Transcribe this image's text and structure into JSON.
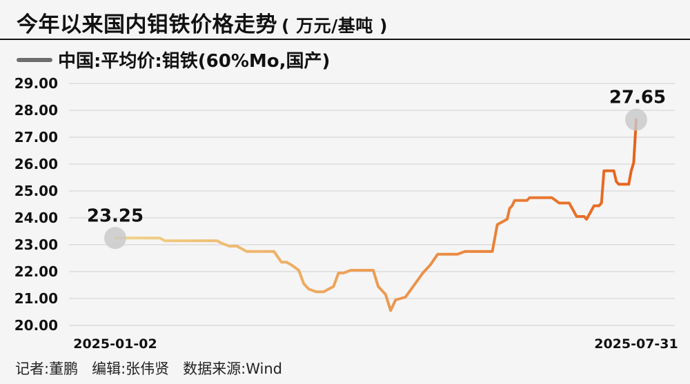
{
  "title": "今年以来国内钼铁价格走势",
  "unit": "( 万元/基吨 )",
  "legend": {
    "label": "中国:平均价:钼铁(60%Mo,国产)"
  },
  "footer": {
    "author": "记者:董鹏",
    "editor": "编辑:张伟贤",
    "source": "数据来源:Wind"
  },
  "colors": {
    "start": "#f1d48a",
    "end": "#e6631c",
    "grid": "#cfcfcf",
    "highlight": "#c8c8c8"
  },
  "chart_data": {
    "type": "line",
    "ylim": [
      20,
      29
    ],
    "yticks": [
      "29.00",
      "28.00",
      "27.00",
      "26.00",
      "25.00",
      "24.00",
      "23.00",
      "22.00",
      "21.00",
      "20.00"
    ],
    "x_range": [
      "2025-01-02",
      "2025-07-31"
    ],
    "xtick_labels": [
      "2025-01-02",
      "2025-07-31"
    ],
    "annotations": [
      {
        "label": "23.25",
        "at": "start"
      },
      {
        "label": "27.65",
        "at": "end"
      }
    ],
    "series": [
      {
        "points": [
          [
            "2025-01-02",
            23.25
          ],
          [
            "2025-01-07",
            23.25
          ],
          [
            "2025-01-10",
            23.25
          ],
          [
            "2025-01-15",
            23.25
          ],
          [
            "2025-01-20",
            23.25
          ],
          [
            "2025-01-22",
            23.15
          ],
          [
            "2025-01-27",
            23.15
          ],
          [
            "2025-02-05",
            23.15
          ],
          [
            "2025-02-10",
            23.15
          ],
          [
            "2025-02-12",
            23.15
          ],
          [
            "2025-02-14",
            23.05
          ],
          [
            "2025-02-17",
            22.95
          ],
          [
            "2025-02-20",
            22.95
          ],
          [
            "2025-02-24",
            22.75
          ],
          [
            "2025-03-03",
            22.75
          ],
          [
            "2025-03-07",
            22.75
          ],
          [
            "2025-03-10",
            22.35
          ],
          [
            "2025-03-12",
            22.35
          ],
          [
            "2025-03-14",
            22.25
          ],
          [
            "2025-03-17",
            22.05
          ],
          [
            "2025-03-19",
            21.55
          ],
          [
            "2025-03-21",
            21.35
          ],
          [
            "2025-03-24",
            21.25
          ],
          [
            "2025-03-27",
            21.25
          ],
          [
            "2025-03-31",
            21.45
          ],
          [
            "2025-04-02",
            21.95
          ],
          [
            "2025-04-04",
            21.95
          ],
          [
            "2025-04-07",
            22.05
          ],
          [
            "2025-04-14",
            22.05
          ],
          [
            "2025-04-16",
            22.05
          ],
          [
            "2025-04-18",
            21.45
          ],
          [
            "2025-04-21",
            21.15
          ],
          [
            "2025-04-23",
            20.55
          ],
          [
            "2025-04-25",
            20.95
          ],
          [
            "2025-04-29",
            21.05
          ],
          [
            "2025-05-06",
            21.95
          ],
          [
            "2025-05-09",
            22.25
          ],
          [
            "2025-05-12",
            22.65
          ],
          [
            "2025-05-16",
            22.65
          ],
          [
            "2025-05-20",
            22.65
          ],
          [
            "2025-05-23",
            22.75
          ],
          [
            "2025-05-30",
            22.75
          ],
          [
            "2025-06-03",
            22.75
          ],
          [
            "2025-06-05",
            23.75
          ],
          [
            "2025-06-09",
            23.95
          ],
          [
            "2025-06-10",
            24.35
          ],
          [
            "2025-06-11",
            24.45
          ],
          [
            "2025-06-12",
            24.65
          ],
          [
            "2025-06-17",
            24.65
          ],
          [
            "2025-06-18",
            24.75
          ],
          [
            "2025-06-23",
            24.75
          ],
          [
            "2025-06-27",
            24.75
          ],
          [
            "2025-06-30",
            24.55
          ],
          [
            "2025-07-04",
            24.55
          ],
          [
            "2025-07-07",
            24.05
          ],
          [
            "2025-07-10",
            24.05
          ],
          [
            "2025-07-11",
            23.95
          ],
          [
            "2025-07-14",
            24.45
          ],
          [
            "2025-07-16",
            24.45
          ],
          [
            "2025-07-17",
            24.55
          ],
          [
            "2025-07-18",
            25.75
          ],
          [
            "2025-07-22",
            25.75
          ],
          [
            "2025-07-23",
            25.35
          ],
          [
            "2025-07-24",
            25.25
          ],
          [
            "2025-07-28",
            25.25
          ],
          [
            "2025-07-29",
            25.75
          ],
          [
            "2025-07-30",
            26.05
          ],
          [
            "2025-07-31",
            27.65
          ]
        ]
      }
    ]
  }
}
